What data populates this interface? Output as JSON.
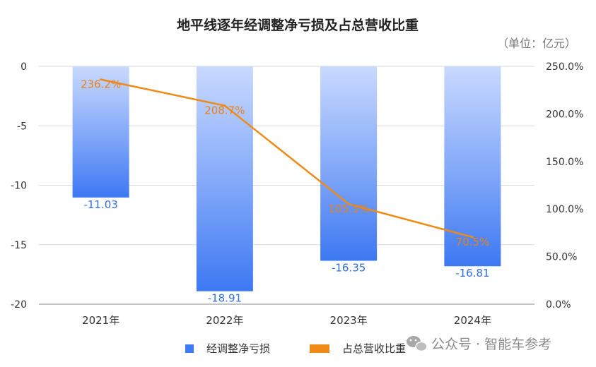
{
  "chart_data": {
    "type": "bar",
    "title": "地平线逐年经调整净亏损及占总营收比重",
    "unit_note": "（单位：亿元）",
    "categories": [
      "2021年",
      "2022年",
      "2023年",
      "2024年"
    ],
    "series": [
      {
        "name": "经调整净亏损",
        "type": "bar",
        "axis": "left",
        "values": [
          -11.03,
          -18.91,
          -16.35,
          -16.81
        ],
        "labels": [
          "-11.03",
          "-18.91",
          "-16.35",
          "-16.81"
        ],
        "color": "#3d7af5"
      },
      {
        "name": "占总营收比重",
        "type": "line",
        "axis": "right",
        "values": [
          236.2,
          208.7,
          105.3,
          70.5
        ],
        "labels": [
          "236.2%",
          "208.7%",
          "105.3%",
          "70.5%"
        ],
        "color": "#ef8a17"
      }
    ],
    "y_left": {
      "min": -20,
      "max": 0,
      "ticks": [
        "0",
        "-5",
        "-10",
        "-15",
        "-20"
      ],
      "tick_values": [
        0,
        -5,
        -10,
        -15,
        -20
      ]
    },
    "y_right": {
      "min": 0,
      "max": 250,
      "ticks": [
        "250.0%",
        "200.0%",
        "150.0%",
        "100.0%",
        "50.0%",
        "0.0%"
      ],
      "tick_values": [
        250,
        200,
        150,
        100,
        50,
        0
      ]
    },
    "grid": true,
    "legend": "bottom"
  },
  "watermark": {
    "text": "公众号 · 智能车参考",
    "icon": "wechat-icon"
  }
}
